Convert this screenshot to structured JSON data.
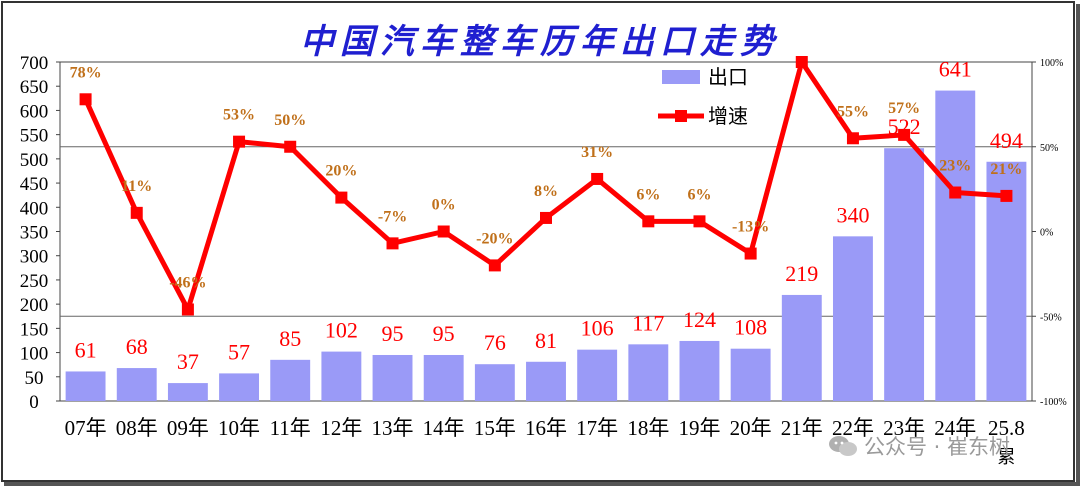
{
  "chart_data": {
    "type": "bar",
    "title": "中国汽车整车历年出口走势",
    "categories": [
      "07年",
      "08年",
      "09年",
      "10年",
      "11年",
      "12年",
      "13年",
      "14年",
      "15年",
      "16年",
      "17年",
      "18年",
      "19年",
      "20年",
      "21年",
      "22年",
      "23年",
      "24年",
      "25.8"
    ],
    "category_sub_last": "累",
    "series": [
      {
        "name": "出口",
        "type": "bar",
        "values": [
          61,
          68,
          37,
          57,
          85,
          102,
          95,
          95,
          76,
          81,
          106,
          117,
          124,
          108,
          219,
          340,
          522,
          641,
          494
        ]
      },
      {
        "name": "增速",
        "type": "line",
        "axis": "right",
        "values": [
          78,
          11,
          -46,
          53,
          50,
          20,
          -7,
          0,
          -20,
          8,
          31,
          6,
          6,
          -13,
          100,
          55,
          57,
          23,
          21
        ],
        "labels": [
          "78%",
          "11%",
          "-46%",
          "53%",
          "50%",
          "20%",
          "-7%",
          "0%",
          "-20%",
          "8%",
          "31%",
          "6%",
          "6%",
          "-13%",
          "",
          "55%",
          "57%",
          "23%",
          "21%"
        ]
      }
    ],
    "left_axis": {
      "ylim": [
        0,
        700
      ],
      "ticks": [
        0,
        50,
        100,
        150,
        200,
        250,
        300,
        350,
        400,
        450,
        500,
        550,
        600,
        650,
        700
      ]
    },
    "right_axis": {
      "ylim": [
        -100,
        100
      ],
      "ticks": [
        -100,
        -50,
        0,
        50,
        100
      ],
      "tick_labels": [
        "-100%",
        "-50%",
        "0%",
        "50%",
        "100%"
      ]
    },
    "legend_position": "top-right",
    "colors": {
      "bar": "#9a9af7",
      "line": "#ff0000",
      "bar_label": "#ff0000",
      "line_label": "#c0701a",
      "title": "#1f1fd0"
    }
  },
  "watermark": {
    "text": "公众号 · 崔东树"
  }
}
